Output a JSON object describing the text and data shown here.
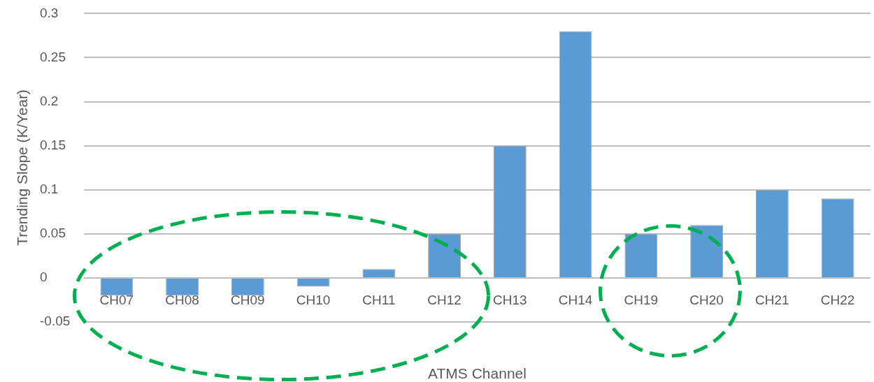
{
  "chart_data": {
    "type": "bar",
    "xlabel": "ATMS Channel",
    "ylabel": "Trending Slope (K/Year)",
    "categories": [
      "CH07",
      "CH08",
      "CH09",
      "CH10",
      "CH11",
      "CH12",
      "CH13",
      "CH14",
      "CH19",
      "CH20",
      "CH21",
      "CH22"
    ],
    "values": [
      -0.02,
      -0.02,
      -0.02,
      -0.01,
      0.01,
      0.05,
      0.15,
      0.28,
      0.05,
      0.06,
      0.1,
      0.09
    ],
    "color": "#5b9bd5",
    "ylim": [
      -0.05,
      0.3
    ],
    "yticks": [
      -0.05,
      0,
      0.05,
      0.1,
      0.15,
      0.2,
      0.25,
      0.3
    ],
    "grid": "y"
  }
}
